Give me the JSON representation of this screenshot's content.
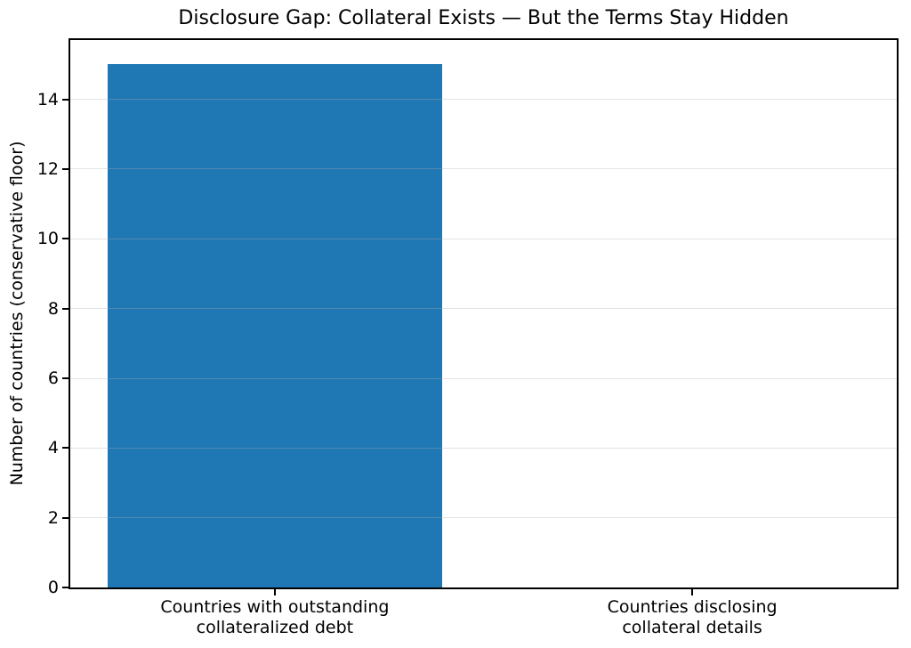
{
  "chart_data": {
    "type": "bar",
    "title": "Disclosure Gap: Collateral Exists — But the Terms Stay Hidden",
    "categories": [
      "Countries with outstanding\ncollateralized debt",
      "Countries disclosing\ncollateral details"
    ],
    "values": [
      15,
      0
    ],
    "series": [
      {
        "name": "Number of countries",
        "values": [
          15,
          0
        ]
      }
    ],
    "xlabel": "",
    "ylabel": "Number of countries (conservative floor)",
    "ylim": [
      0,
      15.7
    ],
    "yticks": [
      0,
      2,
      4,
      6,
      8,
      10,
      12,
      14
    ],
    "bar_color": "#1f77b4",
    "bar_width_fraction": 0.8,
    "grid": "horizontal",
    "grid_color": "rgba(176,176,176,0.35)",
    "legend": "none",
    "frame": "full-box",
    "background_color": "#ffffff",
    "text_color": "#000000"
  }
}
